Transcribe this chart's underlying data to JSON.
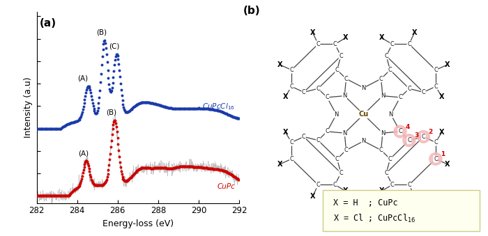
{
  "xlim": [
    282,
    292
  ],
  "xticks": [
    282,
    284,
    286,
    288,
    290,
    292
  ],
  "xlabel": "Energy-loss (eV)",
  "ylabel": "Intensity (a.u)",
  "panel_a_label": "(a)",
  "panel_b_label": "(b)",
  "cupc_color": "#cc0000",
  "cupcl_color": "#1a3aaa",
  "noise_color": "#aaaaaa",
  "cupc_label": "CuPc",
  "cupcl_label": "CuPcCl$_{16}$",
  "ann_A1": "(A)",
  "ann_B1": "(B)",
  "ann_C1": "(C)",
  "ann_A2": "(A)",
  "ann_B2": "(B)",
  "legend_box_color": "#ffffcc",
  "legend_text1": "X = H  ; CuPc",
  "legend_text2": "X = Cl ; CuPcCl$_{16}$",
  "highlight_color": "#f5b8b8",
  "red_label": "#cc0000",
  "bond_color": "#444444",
  "atom_color": "#111111",
  "cu_color": "#664400"
}
